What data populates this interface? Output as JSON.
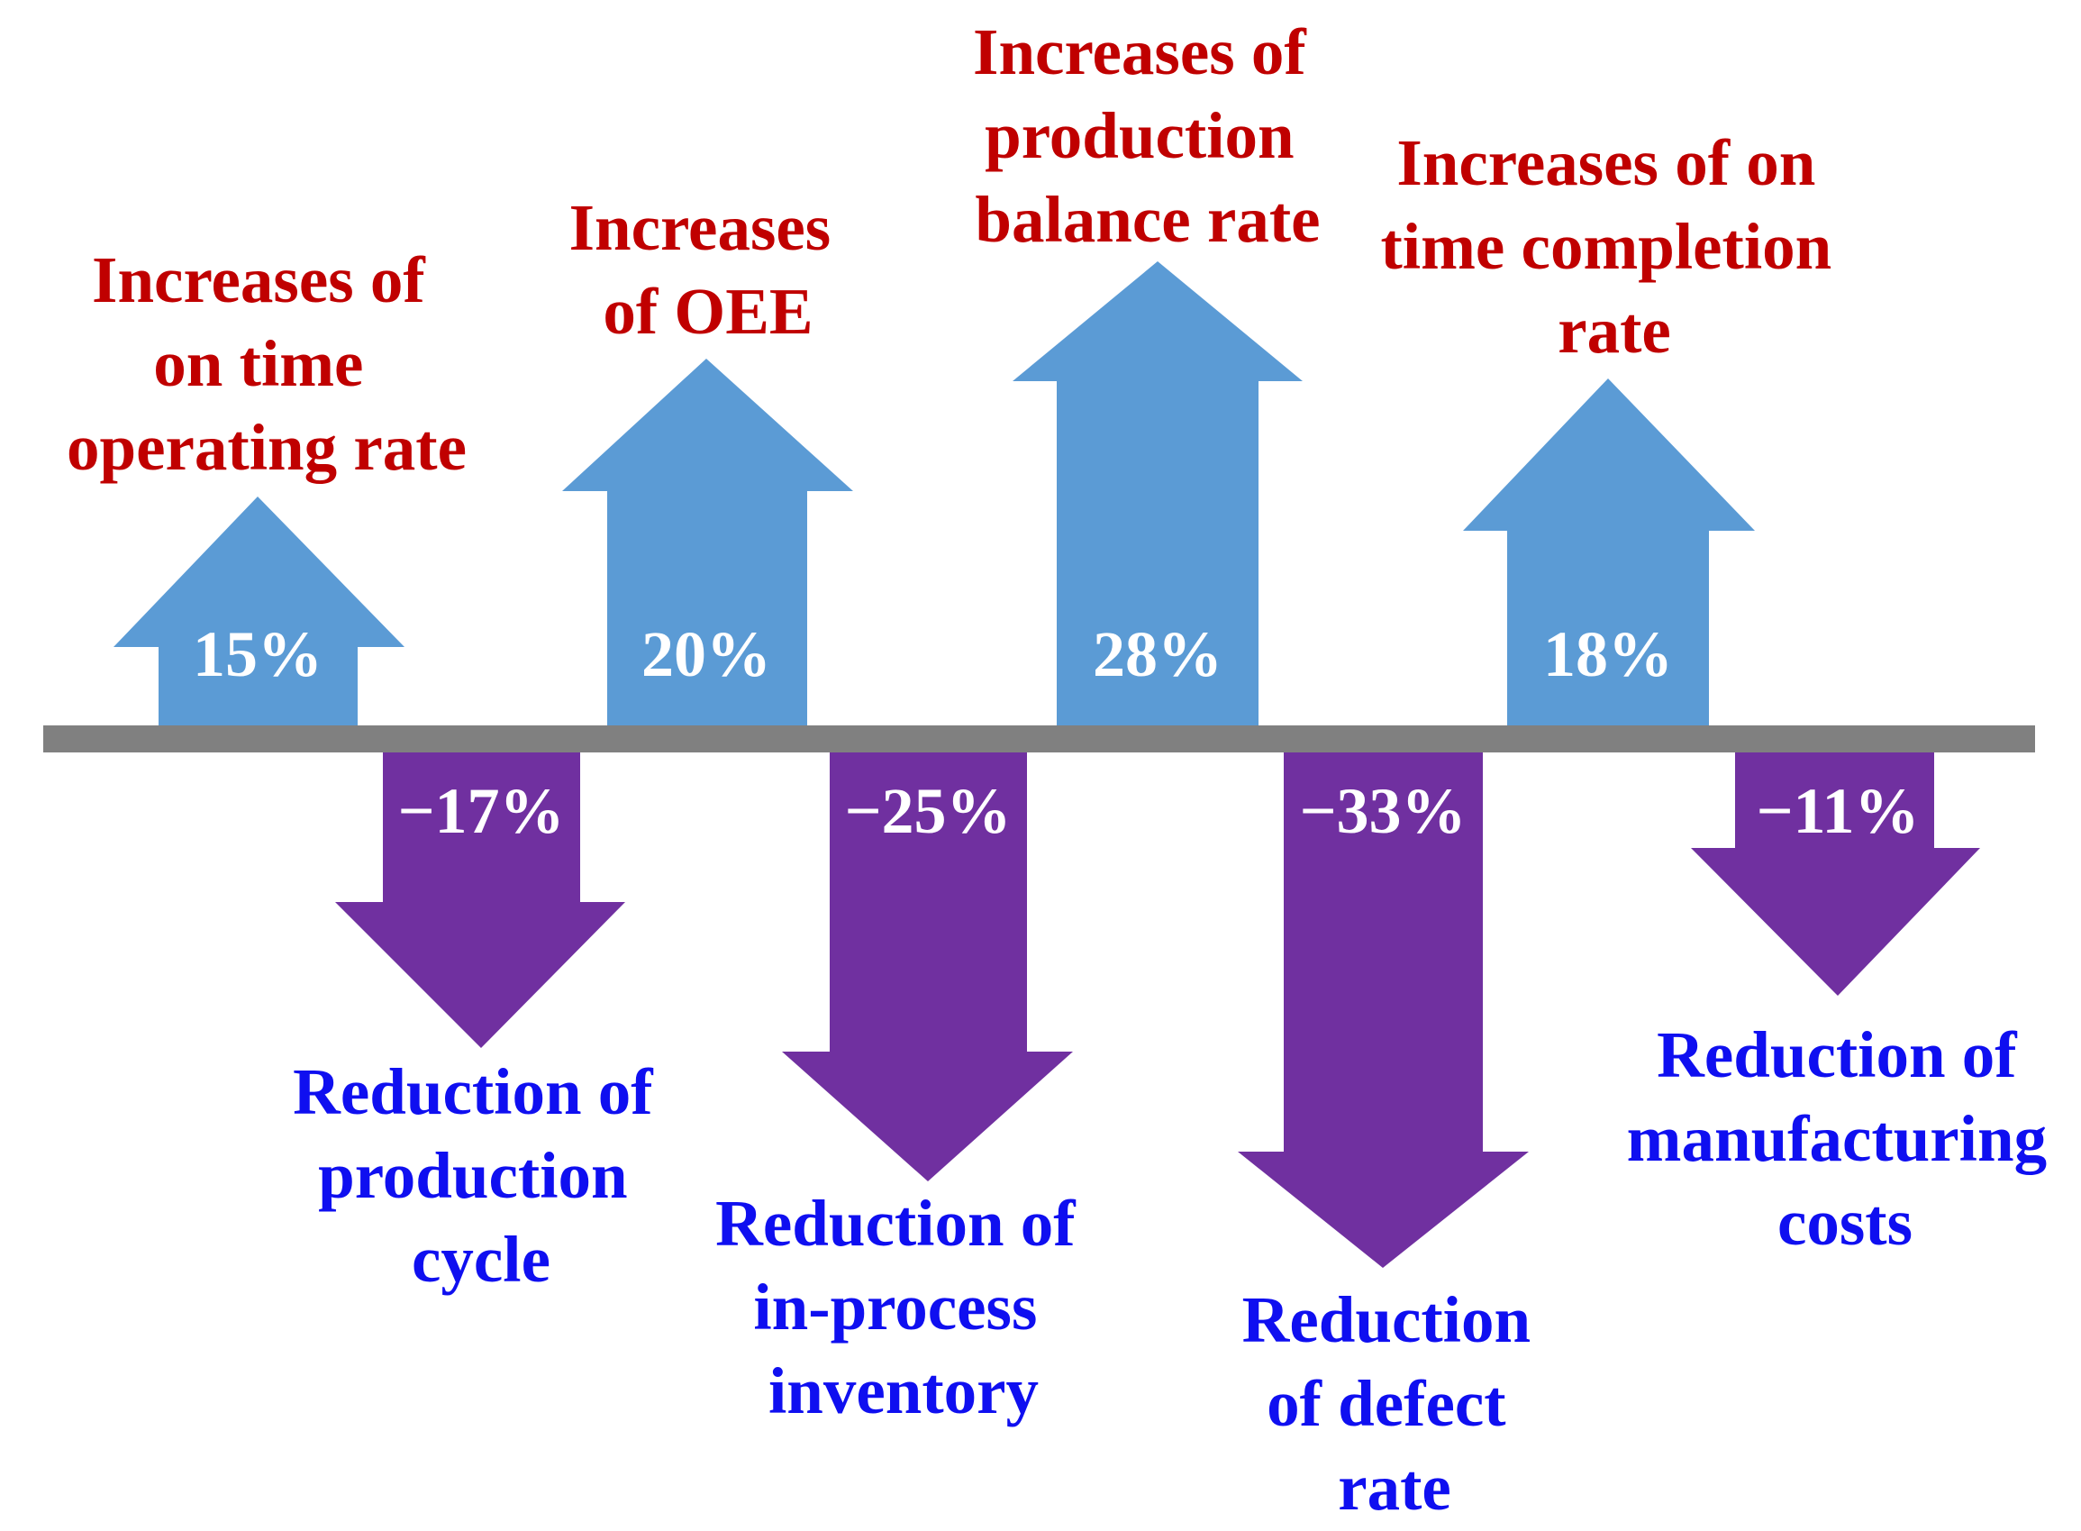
{
  "colors": {
    "up_arrow": "#5b9bd5",
    "down_arrow": "#7030a0",
    "baseline": "#808080",
    "up_label": "#c00000",
    "down_label": "#0f0ff0",
    "value_text": "#ffffff"
  },
  "increases": [
    {
      "value": "15%",
      "percent": 15,
      "label_lines": [
        "Increases of",
        "on time",
        "operating rate"
      ]
    },
    {
      "value": "20%",
      "percent": 20,
      "label_lines": [
        "Increases",
        "of  OEE"
      ]
    },
    {
      "value": "28%",
      "percent": 28,
      "label_lines": [
        "Increases of",
        "production",
        "balance rate"
      ]
    },
    {
      "value": "18%",
      "percent": 18,
      "label_lines": [
        "Increases of  on",
        "time completion",
        "rate"
      ]
    }
  ],
  "reductions": [
    {
      "value": "−17%",
      "percent": -17,
      "label_lines": [
        "Reduction of",
        "production",
        "cycle"
      ]
    },
    {
      "value": "−25%",
      "percent": -25,
      "label_lines": [
        "Reduction of",
        "in-process",
        "inventory"
      ]
    },
    {
      "value": "−33%",
      "percent": -33,
      "label_lines": [
        "Reduction",
        "of defect",
        "rate"
      ]
    },
    {
      "value": "−11%",
      "percent": -11,
      "label_lines": [
        "Reduction of",
        "manufacturing",
        "costs"
      ]
    }
  ]
}
